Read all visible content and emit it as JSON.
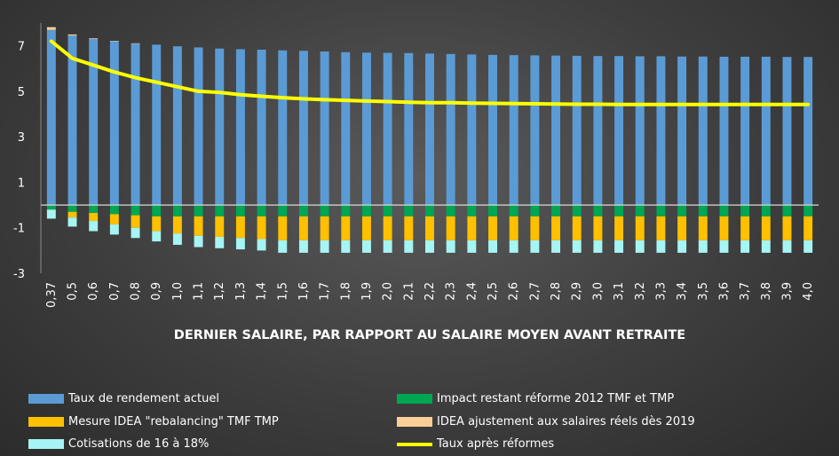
{
  "chart_data": {
    "type": "bar",
    "stacked": true,
    "xlabel": "DERNIER SALAIRE, PAR RAPPORT AU SALAIRE MOYEN AVANT RETRAITE",
    "ylabel": "",
    "ylim": [
      -3,
      8
    ],
    "yticks": [
      7,
      5,
      3,
      1,
      -1,
      -3
    ],
    "grid": false,
    "legend_position": "bottom",
    "categories": [
      "0,37",
      "0,5",
      "0,6",
      "0,7",
      "0,8",
      "0,9",
      "1,0",
      "1,1",
      "1,2",
      "1,3",
      "1,4",
      "1,5",
      "1,6",
      "1,7",
      "1,8",
      "1,9",
      "2,0",
      "2,1",
      "2,2",
      "2,3",
      "2,4",
      "2,5",
      "2,6",
      "2,7",
      "2,8",
      "2,9",
      "3,0",
      "3,1",
      "3,2",
      "3,3",
      "3,4",
      "3,5",
      "3,6",
      "3,7",
      "3,8",
      "3,9",
      "4,0"
    ],
    "series": [
      {
        "name": "Taux de rendement actuel",
        "kind": "bar",
        "color": "#5b9bd5",
        "values": [
          7.7,
          7.45,
          7.3,
          7.2,
          7.1,
          7.05,
          6.98,
          6.93,
          6.88,
          6.85,
          6.83,
          6.8,
          6.78,
          6.75,
          6.72,
          6.7,
          6.69,
          6.68,
          6.66,
          6.64,
          6.62,
          6.6,
          6.59,
          6.58,
          6.57,
          6.56,
          6.55,
          6.55,
          6.54,
          6.54,
          6.53,
          6.53,
          6.52,
          6.52,
          6.52,
          6.51,
          6.51
        ]
      },
      {
        "name": "IDEA ajustement aux salaires réels dès 2019",
        "kind": "bar",
        "color": "#f8cf96",
        "values": [
          0.12,
          0.05,
          0.03,
          0.02,
          0.01,
          0,
          0,
          0,
          0,
          0,
          0,
          0,
          0,
          0,
          0,
          0,
          0,
          0,
          0,
          0,
          0,
          0,
          0,
          0,
          0,
          0,
          0,
          0,
          0,
          0,
          0,
          0,
          0,
          0,
          0,
          0,
          0
        ]
      },
      {
        "name": "Impact restant réforme 2012 TMF et TMP",
        "kind": "bar",
        "color": "#00a651",
        "values": [
          -0.2,
          -0.3,
          -0.35,
          -0.4,
          -0.45,
          -0.5,
          -0.5,
          -0.5,
          -0.5,
          -0.5,
          -0.5,
          -0.5,
          -0.5,
          -0.5,
          -0.5,
          -0.5,
          -0.5,
          -0.5,
          -0.5,
          -0.5,
          -0.5,
          -0.5,
          -0.5,
          -0.5,
          -0.5,
          -0.5,
          -0.5,
          -0.5,
          -0.5,
          -0.5,
          -0.5,
          -0.5,
          -0.5,
          -0.5,
          -0.5,
          -0.5,
          -0.5
        ]
      },
      {
        "name": "Mesure IDEA \"rebalancing\" TMF TMP",
        "kind": "bar",
        "color": "#ffc000",
        "values": [
          0,
          -0.25,
          -0.35,
          -0.45,
          -0.55,
          -0.65,
          -0.75,
          -0.85,
          -0.9,
          -0.95,
          -1.0,
          -1.05,
          -1.05,
          -1.05,
          -1.05,
          -1.05,
          -1.05,
          -1.05,
          -1.05,
          -1.05,
          -1.05,
          -1.05,
          -1.05,
          -1.05,
          -1.05,
          -1.05,
          -1.05,
          -1.05,
          -1.05,
          -1.05,
          -1.05,
          -1.05,
          -1.05,
          -1.05,
          -1.05,
          -1.05,
          -1.05
        ]
      },
      {
        "name": "Cotisations de 16 à 18%",
        "kind": "bar",
        "color": "#a6f4f4",
        "values": [
          -0.4,
          -0.4,
          -0.45,
          -0.45,
          -0.45,
          -0.45,
          -0.5,
          -0.5,
          -0.5,
          -0.5,
          -0.5,
          -0.55,
          -0.55,
          -0.55,
          -0.55,
          -0.55,
          -0.55,
          -0.55,
          -0.55,
          -0.55,
          -0.55,
          -0.55,
          -0.55,
          -0.55,
          -0.55,
          -0.55,
          -0.55,
          -0.55,
          -0.55,
          -0.55,
          -0.55,
          -0.55,
          -0.55,
          -0.55,
          -0.55,
          -0.55,
          -0.55
        ]
      },
      {
        "name": "Taux après réformes",
        "kind": "line",
        "color": "#ffff00",
        "values": [
          7.2,
          6.45,
          6.15,
          5.85,
          5.6,
          5.4,
          5.2,
          5.0,
          4.95,
          4.85,
          4.78,
          4.72,
          4.67,
          4.63,
          4.6,
          4.57,
          4.55,
          4.52,
          4.5,
          4.5,
          4.48,
          4.47,
          4.46,
          4.45,
          4.44,
          4.43,
          4.43,
          4.42,
          4.42,
          4.42,
          4.42,
          4.42,
          4.42,
          4.42,
          4.42,
          4.42,
          4.42
        ]
      }
    ]
  }
}
